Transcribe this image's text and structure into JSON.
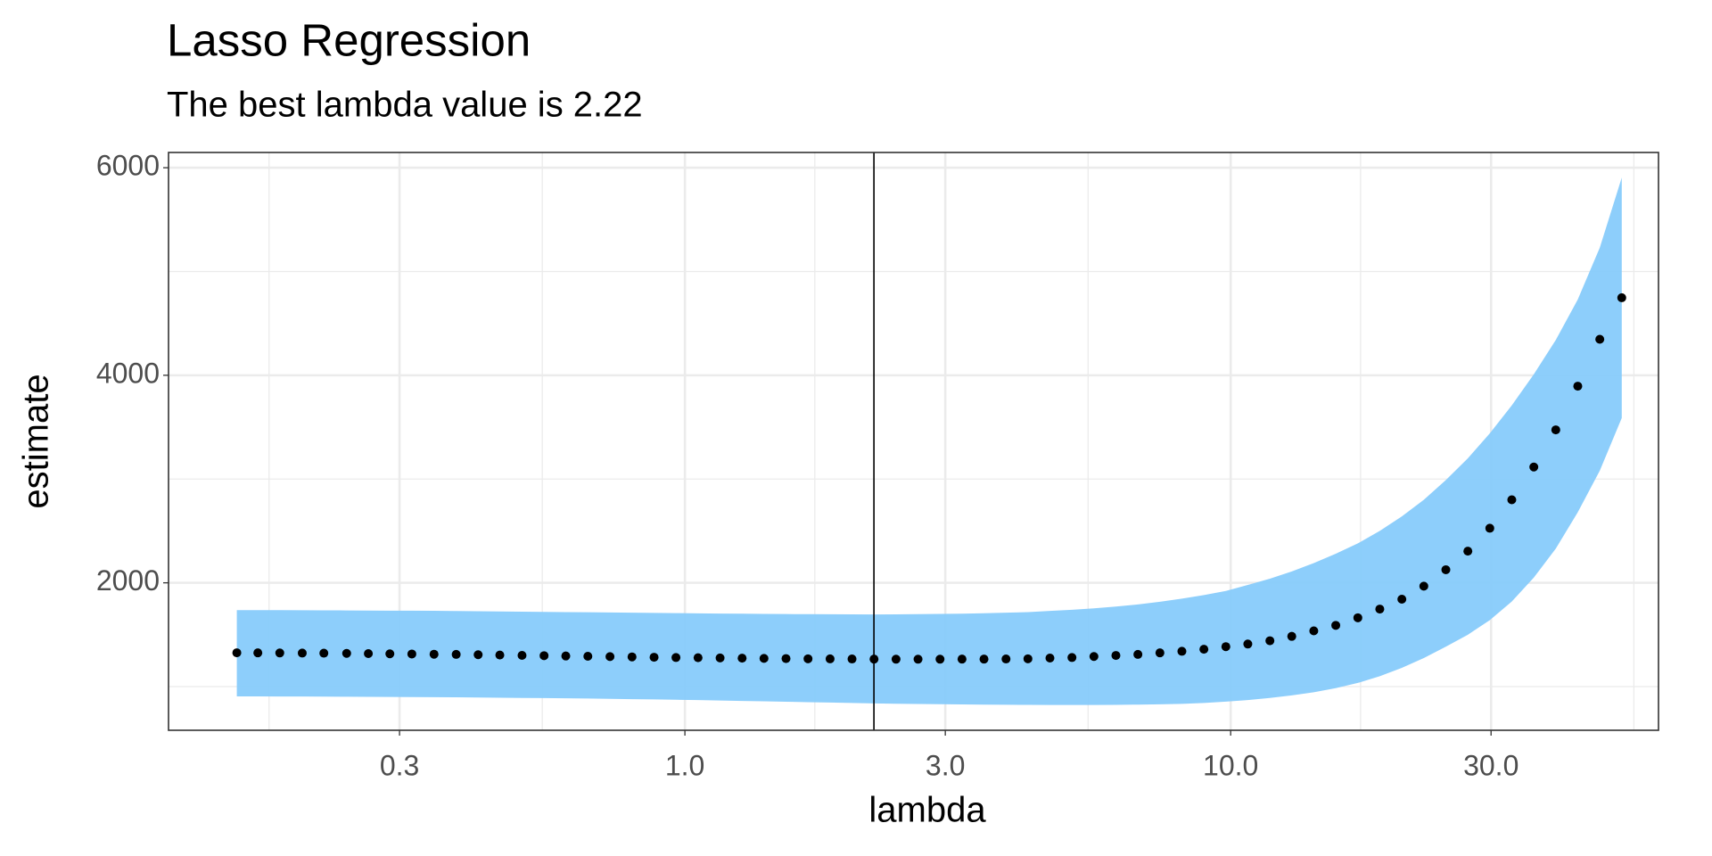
{
  "chart_data": {
    "type": "scatter",
    "title": "Lasso Regression",
    "subtitle": "The best lambda value is 2.22",
    "x_label": "lambda",
    "y_label": "estimate",
    "x_scale": "log",
    "grid": true,
    "xlim": [
      0.1132,
      60.8
    ],
    "ylim": [
      579,
      6147
    ],
    "xticks": [
      0.3,
      {
        "value": 1,
        "label": "1.0"
      },
      {
        "value": 3,
        "label": "3.0"
      },
      {
        "value": 10,
        "label": "10.0"
      },
      {
        "value": 30,
        "label": "30.0"
      }
    ],
    "minor_xticks": [
      0.173,
      0.548,
      1.73,
      5.48,
      17.3,
      54.8
    ],
    "yticks": [
      2000,
      4000,
      6000
    ],
    "minor_yticks": [
      1000,
      3000,
      5000
    ],
    "vline": 2.22,
    "point_color": "#000000",
    "band_color": "#87cbfb",
    "x": [
      0.151,
      0.165,
      0.181,
      0.199,
      0.218,
      0.24,
      0.263,
      0.288,
      0.316,
      0.347,
      0.381,
      0.418,
      0.458,
      0.503,
      0.552,
      0.605,
      0.664,
      0.729,
      0.8,
      0.878,
      0.963,
      1.057,
      1.16,
      1.273,
      1.396,
      1.532,
      1.681,
      1.845,
      2.024,
      2.221,
      2.437,
      2.674,
      2.934,
      3.219,
      3.532,
      3.876,
      4.251,
      4.665,
      5.119,
      5.616,
      6.162,
      6.761,
      7.419,
      8.14,
      8.932,
      9.799,
      10.75,
      11.8,
      12.94,
      14.2,
      15.58,
      17.1,
      18.76,
      20.59,
      22.59,
      24.79,
      27.2,
      29.84,
      32.74,
      35.93,
      39.42,
      43.25,
      47.46,
      52.07
    ],
    "values": [
      1326,
      1325,
      1324,
      1323,
      1322,
      1320,
      1318,
      1316,
      1314,
      1312,
      1310,
      1307,
      1304,
      1301,
      1298,
      1295,
      1292,
      1289,
      1286,
      1283,
      1280,
      1278,
      1276,
      1274,
      1272,
      1270,
      1268,
      1267,
      1266,
      1265,
      1264,
      1264,
      1264,
      1265,
      1265,
      1266,
      1268,
      1275,
      1280,
      1290,
      1300,
      1310,
      1325,
      1340,
      1360,
      1385,
      1410,
      1442,
      1484,
      1537,
      1590,
      1663,
      1747,
      1842,
      1968,
      2126,
      2305,
      2526,
      2800,
      3116,
      3474,
      3895,
      4347,
      4747
    ],
    "upper": [
      1737,
      1737,
      1737,
      1736,
      1735,
      1734,
      1733,
      1732,
      1731,
      1730,
      1728,
      1726,
      1724,
      1722,
      1720,
      1718,
      1716,
      1714,
      1712,
      1710,
      1708,
      1706,
      1704,
      1702,
      1700,
      1699,
      1698,
      1697,
      1696,
      1695,
      1696,
      1698,
      1700,
      1703,
      1707,
      1712,
      1718,
      1729,
      1740,
      1754,
      1771,
      1792,
      1817,
      1847,
      1882,
      1922,
      1980,
      2040,
      2110,
      2190,
      2280,
      2380,
      2500,
      2640,
      2800,
      2990,
      3200,
      3440,
      3710,
      4010,
      4340,
      4730,
      5230,
      5905
    ],
    "lower": [
      905,
      905,
      904,
      904,
      903,
      902,
      901,
      900,
      899,
      898,
      897,
      895,
      893,
      891,
      889,
      887,
      885,
      882,
      879,
      876,
      873,
      870,
      866,
      862,
      858,
      854,
      850,
      846,
      842,
      838,
      835,
      832,
      830,
      828,
      826,
      825,
      824,
      823,
      823,
      823,
      824,
      826,
      829,
      834,
      842,
      855,
      870,
      890,
      915,
      945,
      985,
      1035,
      1100,
      1180,
      1275,
      1385,
      1500,
      1640,
      1820,
      2050,
      2330,
      2680,
      3080,
      3589
    ]
  }
}
